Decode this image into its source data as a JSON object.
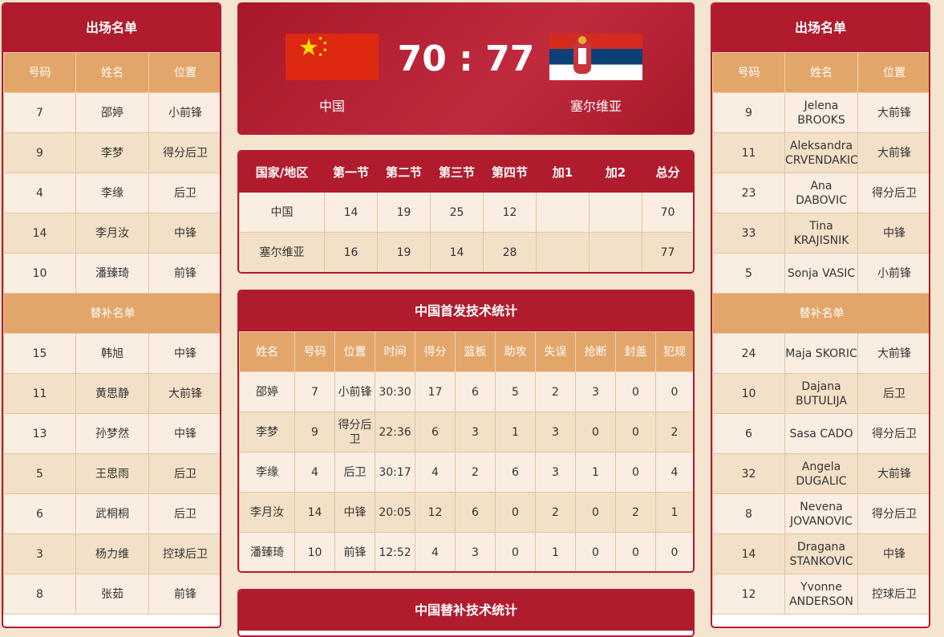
{
  "left": {
    "title": "出场名单",
    "headers": [
      "号码",
      "姓名",
      "位置"
    ],
    "starters": [
      [
        "7",
        "邵婷",
        "小前锋"
      ],
      [
        "9",
        "李梦",
        "得分后卫"
      ],
      [
        "4",
        "李缘",
        "后卫"
      ],
      [
        "14",
        "李月汝",
        "中锋"
      ],
      [
        "10",
        "潘臻琦",
        "前锋"
      ]
    ],
    "sub_title": "替补名单",
    "subs": [
      [
        "15",
        "韩旭",
        "中锋"
      ],
      [
        "11",
        "黄思静",
        "大前锋"
      ],
      [
        "13",
        "孙梦然",
        "中锋"
      ],
      [
        "5",
        "王思雨",
        "后卫"
      ],
      [
        "6",
        "武桐桐",
        "后卫"
      ],
      [
        "3",
        "杨力维",
        "控球后卫"
      ],
      [
        "8",
        "张茹",
        "前锋"
      ]
    ]
  },
  "right": {
    "title": "出场名单",
    "headers": [
      "号码",
      "姓名",
      "位置"
    ],
    "starters": [
      [
        "9",
        "Jelena BROOKS",
        "大前锋"
      ],
      [
        "11",
        "Aleksandra CRVENDAKIC",
        "大前锋"
      ],
      [
        "23",
        "Ana DABOVIC",
        "得分后卫"
      ],
      [
        "33",
        "Tina KRAJISNIK",
        "中锋"
      ],
      [
        "5",
        "Sonja VASIC",
        "小前锋"
      ]
    ],
    "sub_title": "替补名单",
    "subs": [
      [
        "24",
        "Maja SKORIC",
        "大前锋"
      ],
      [
        "10",
        "Dajana BUTULIJA",
        "后卫"
      ],
      [
        "6",
        "Sasa CADO",
        "得分后卫"
      ],
      [
        "32",
        "Angela DUGALIC",
        "大前锋"
      ],
      [
        "8",
        "Nevena JOVANOVIC",
        "得分后卫"
      ],
      [
        "14",
        "Dragana STANKOVIC",
        "中锋"
      ],
      [
        "12",
        "Yvonne ANDERSON",
        "控球后卫"
      ]
    ]
  },
  "score": {
    "home": "中国",
    "away": "塞尔维亚",
    "text": "70 : 77",
    "home_flag": "china-flag",
    "away_flag": "serbia-flag"
  },
  "quarters": {
    "headers": [
      "国家/地区",
      "第一节",
      "第二节",
      "第三节",
      "第四节",
      "加1",
      "加2",
      "总分"
    ],
    "rows": [
      [
        "中国",
        "14",
        "19",
        "25",
        "12",
        "",
        "",
        "70"
      ],
      [
        "塞尔维亚",
        "16",
        "19",
        "14",
        "28",
        "",
        "",
        "77"
      ]
    ]
  },
  "starter_stats": {
    "title": "中国首发技术统计",
    "headers": [
      "姓名",
      "号码",
      "位置",
      "时间",
      "得分",
      "篮板",
      "助攻",
      "失误",
      "抢断",
      "封盖",
      "犯规"
    ],
    "rows": [
      [
        "邵婷",
        "7",
        "小前锋",
        "30:30",
        "17",
        "6",
        "5",
        "2",
        "3",
        "0",
        "0"
      ],
      [
        "李梦",
        "9",
        "得分后卫",
        "22:36",
        "6",
        "3",
        "1",
        "3",
        "0",
        "0",
        "2"
      ],
      [
        "李缘",
        "4",
        "后卫",
        "30:17",
        "4",
        "2",
        "6",
        "3",
        "1",
        "0",
        "4"
      ],
      [
        "李月汝",
        "14",
        "中锋",
        "20:05",
        "12",
        "6",
        "0",
        "2",
        "0",
        "2",
        "1"
      ],
      [
        "潘臻琦",
        "10",
        "前锋",
        "12:52",
        "4",
        "3",
        "0",
        "1",
        "0",
        "0",
        "0"
      ]
    ]
  },
  "sub_stats": {
    "title": "中国替补技术统计"
  },
  "colors": {
    "red": "#b01c2e",
    "orange": "#e3a66a",
    "row_light": "#faeee2",
    "row_dark": "#f3e0c8"
  }
}
